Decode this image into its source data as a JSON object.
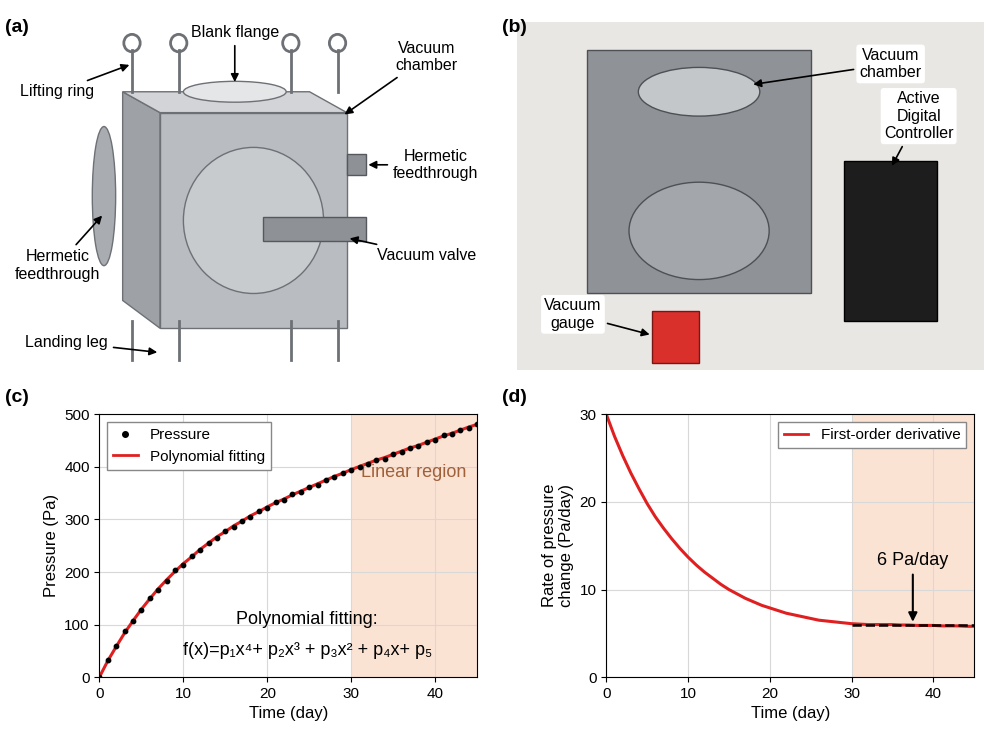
{
  "chart_data": [
    {
      "type": "line",
      "panel_label": "(c)",
      "x_label": "Time (day)",
      "y_label": "Pressure (Pa)",
      "x": [
        0,
        1,
        2,
        3,
        4,
        5,
        6,
        7,
        8,
        9,
        10,
        11,
        12,
        13,
        14,
        15,
        16,
        17,
        18,
        19,
        20,
        21,
        22,
        23,
        24,
        25,
        26,
        27,
        28,
        29,
        30,
        31,
        32,
        33,
        34,
        35,
        36,
        37,
        38,
        39,
        40,
        41,
        42,
        43,
        44,
        45
      ],
      "series": [
        {
          "name": "Pressure",
          "type": "scatter",
          "color": "#000000",
          "marker": "o",
          "values": [
            0,
            33,
            60,
            87,
            106,
            127,
            150,
            166,
            183,
            203,
            214,
            230,
            241,
            256,
            265,
            279,
            286,
            298,
            305,
            317,
            322,
            333,
            338,
            348,
            352,
            362,
            366,
            376,
            380,
            389,
            394,
            400,
            405,
            414,
            416,
            425,
            428,
            437,
            439,
            448,
            451,
            460,
            462,
            471,
            474,
            482
          ]
        },
        {
          "name": "Polynomial fitting",
          "type": "line",
          "color": "#e02020",
          "line_style": "solid",
          "values": [
            0,
            31,
            58,
            84,
            107,
            129,
            149,
            168,
            185,
            201,
            216,
            229,
            243,
            255,
            267,
            277,
            288,
            297,
            307,
            315,
            324,
            332,
            339,
            347,
            354,
            361,
            368,
            375,
            382,
            388,
            395,
            401,
            407,
            413,
            418,
            424,
            430,
            436,
            441,
            447,
            453,
            459,
            464,
            470,
            476,
            481
          ]
        }
      ],
      "shaded_region": {
        "x": [
          30,
          45
        ],
        "label": "Linear region"
      },
      "annotations": [
        "Polynomial fitting:",
        "f(x)=p₁x⁴+ p₂x³ + p₃x² + p₄x+ p₅"
      ],
      "xlim": [
        0,
        45
      ],
      "xticks": [
        0,
        10,
        20,
        30,
        40
      ],
      "ylim": [
        0,
        500
      ],
      "yticks": [
        0,
        100,
        200,
        300,
        400,
        500
      ],
      "grid": true,
      "legend": "upper left"
    },
    {
      "type": "line",
      "panel_label": "(d)",
      "x_label": "Time (day)",
      "y_label": "Rate of pressure\nchange (Pa/day)",
      "x": [
        0,
        1,
        2,
        3,
        4,
        5,
        6,
        7,
        8,
        9,
        10,
        11,
        12,
        13,
        14,
        15,
        16,
        17,
        18,
        19,
        20,
        21,
        22,
        23,
        24,
        25,
        26,
        27,
        28,
        29,
        30,
        31,
        32,
        33,
        34,
        35,
        36,
        37,
        38,
        39,
        40,
        41,
        42,
        43,
        44,
        45
      ],
      "series": [
        {
          "name": "First-order derivative",
          "type": "line",
          "color": "#e02020",
          "line_style": "solid",
          "values": [
            30,
            27.5,
            25.3,
            23.3,
            21.5,
            19.8,
            18.3,
            17,
            15.8,
            14.7,
            13.7,
            12.8,
            12,
            11.3,
            10.6,
            10,
            9.5,
            9,
            8.6,
            8.2,
            7.9,
            7.6,
            7.3,
            7.1,
            6.9,
            6.7,
            6.5,
            6.4,
            6.3,
            6.2,
            6.1,
            6.05,
            6,
            6,
            6,
            6,
            5.95,
            5.95,
            5.9,
            5.9,
            5.9,
            5.85,
            5.85,
            5.85,
            5.8,
            5.8
          ]
        },
        {
          "type": "line",
          "color": "#000000",
          "line_style": "dashed",
          "x": [
            30,
            45
          ],
          "values": [
            6,
            6
          ]
        }
      ],
      "shaded_region": {
        "x": [
          30,
          45
        ]
      },
      "annotations": [
        "6 Pa/day"
      ],
      "xlim": [
        0,
        45
      ],
      "xticks": [
        0,
        10,
        20,
        30,
        40
      ],
      "ylim": [
        0,
        30
      ],
      "yticks": [
        0,
        10,
        20,
        30
      ],
      "grid": true,
      "legend": "upper right"
    }
  ],
  "diagrams": [
    {
      "panel_label": "(a)",
      "labels": [
        "Blank flange",
        "Vacuum\nchamber",
        "Lifting ring",
        "Hermetic\nfeedthrough",
        "Hermetic\nfeedthrough",
        "Vacuum valve",
        "Landing leg"
      ]
    },
    {
      "panel_label": "(b)",
      "labels": [
        "Vacuum\nchamber",
        "Active\nDigital\nController",
        "Vacuum\ngauge"
      ]
    }
  ]
}
